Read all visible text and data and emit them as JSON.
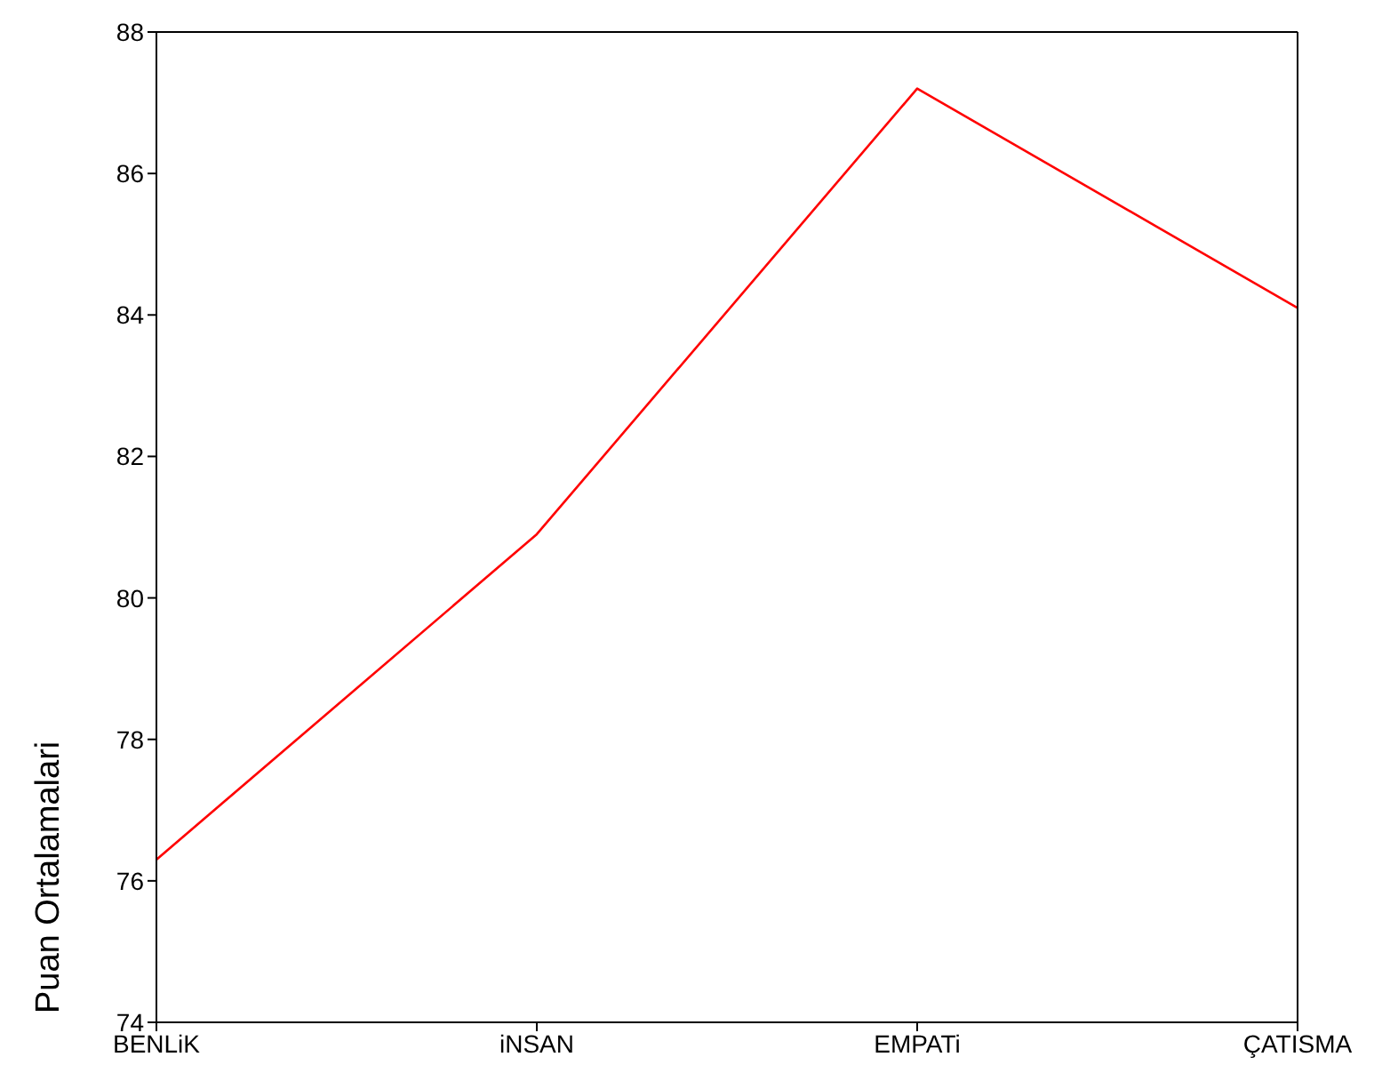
{
  "chart_data": {
    "type": "line",
    "ylabel": "Puan Ortalamalari",
    "categories": [
      "BENLiK",
      "iNSAN",
      "EMPATi",
      "ÇATISMA"
    ],
    "series": [
      {
        "color": "#ff0000",
        "values": [
          76.3,
          80.9,
          87.2,
          84.1
        ]
      }
    ],
    "ylim": [
      74,
      88
    ],
    "yticks": [
      74,
      76,
      78,
      80,
      82,
      84,
      86,
      88
    ],
    "grid": false,
    "legend": false,
    "marker": "none",
    "line_style": "solid"
  }
}
